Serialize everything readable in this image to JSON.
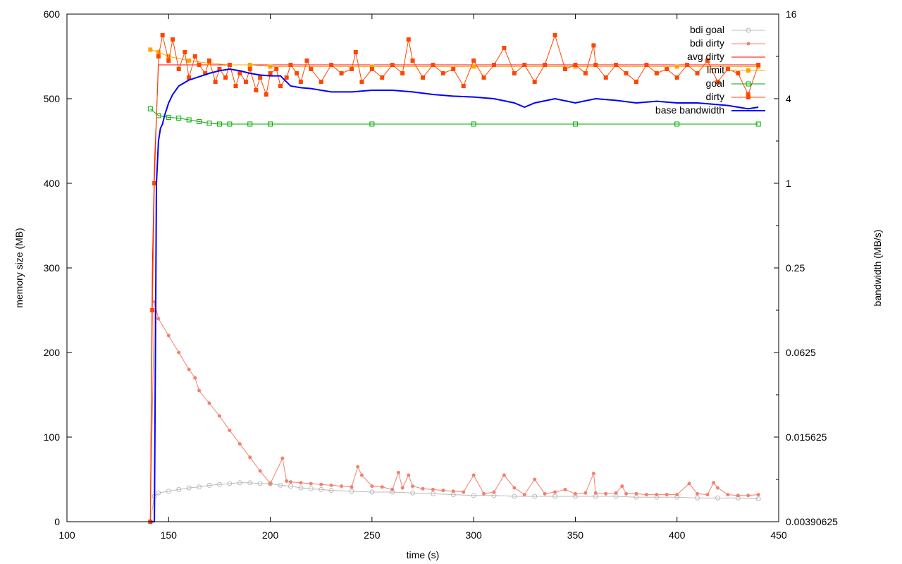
{
  "chart_data": {
    "type": "line",
    "title": "",
    "xlabel": "time (s)",
    "ylabel": "memory size (MB)",
    "y2label": "bandwidth (MB/s)",
    "xlim": [
      100,
      450
    ],
    "ylim": [
      0,
      600
    ],
    "y2scale": "log2",
    "y2lim": [
      0.00390625,
      16
    ],
    "x_ticks": [
      "100",
      "150",
      "200",
      "250",
      "300",
      "350",
      "400",
      "450"
    ],
    "y_ticks": [
      "0",
      "100",
      "200",
      "300",
      "400",
      "500",
      "600"
    ],
    "y2_ticks": [
      "0.00390625",
      "0.015625",
      "0.0625",
      "0.25",
      "1",
      "4",
      "16"
    ],
    "grid": false,
    "legend_position": "top-right",
    "series": [
      {
        "name": "bdi goal",
        "color": "#bbbbbb",
        "marker": "open-circle",
        "axis": "left",
        "x": [
          141,
          143,
          145,
          150,
          155,
          160,
          165,
          170,
          175,
          180,
          185,
          190,
          195,
          200,
          205,
          210,
          215,
          220,
          225,
          230,
          240,
          250,
          260,
          270,
          280,
          290,
          300,
          310,
          320,
          330,
          340,
          350,
          360,
          370,
          380,
          390,
          400,
          410,
          420,
          430,
          440
        ],
        "y": [
          0,
          30,
          34,
          36,
          38,
          40,
          41,
          43,
          44,
          45,
          46,
          46,
          45,
          45,
          43,
          42,
          40,
          39,
          38,
          37,
          36,
          35,
          35,
          34,
          33,
          32,
          31,
          31,
          30,
          30,
          30,
          30,
          30,
          30,
          29,
          29,
          29,
          28,
          28,
          28,
          27
        ]
      },
      {
        "name": "bdi dirty",
        "color": "#f4806c",
        "marker": "filled-circle",
        "axis": "left",
        "x": [
          141,
          143,
          145,
          150,
          155,
          160,
          163,
          165,
          170,
          175,
          180,
          185,
          190,
          195,
          200,
          206,
          208,
          210,
          215,
          220,
          225,
          230,
          235,
          240,
          243,
          245,
          250,
          255,
          260,
          263,
          265,
          268,
          270,
          275,
          280,
          285,
          290,
          295,
          300,
          305,
          310,
          315,
          320,
          325,
          330,
          335,
          340,
          345,
          350,
          355,
          359,
          360,
          365,
          370,
          373,
          375,
          380,
          385,
          390,
          395,
          400,
          406,
          410,
          415,
          418,
          420,
          425,
          430,
          435,
          440
        ],
        "y": [
          0,
          260,
          240,
          220,
          200,
          180,
          170,
          155,
          140,
          125,
          108,
          92,
          76,
          60,
          45,
          75,
          48,
          47,
          46,
          45,
          44,
          43,
          42,
          41,
          65,
          55,
          42,
          41,
          38,
          58,
          40,
          55,
          42,
          39,
          38,
          37,
          36,
          35,
          55,
          33,
          35,
          55,
          40,
          32,
          50,
          33,
          35,
          38,
          33,
          34,
          57,
          34,
          33,
          34,
          42,
          33,
          33,
          32,
          32,
          32,
          32,
          45,
          33,
          32,
          46,
          40,
          32,
          31,
          31,
          32
        ]
      },
      {
        "name": "avg dirty",
        "color": "#ff0000",
        "marker": "none",
        "axis": "left",
        "x": [
          141,
          142,
          143,
          145,
          440
        ],
        "y": [
          0,
          300,
          420,
          540,
          540
        ]
      },
      {
        "name": "limit",
        "color": "#ffa500",
        "marker": "filled-square",
        "axis": "left",
        "x": [
          141,
          145,
          150,
          160,
          170,
          180,
          190,
          200,
          250,
          300,
          350,
          400,
          440
        ],
        "y": [
          558,
          555,
          550,
          545,
          542,
          540,
          540,
          538,
          538,
          538,
          538,
          538,
          538
        ]
      },
      {
        "name": "goal",
        "color": "#00aa00",
        "marker": "open-square",
        "axis": "left",
        "x": [
          141,
          145,
          150,
          155,
          160,
          165,
          170,
          175,
          180,
          190,
          200,
          250,
          300,
          350,
          400,
          440
        ],
        "y": [
          488,
          480,
          478,
          477,
          475,
          473,
          471,
          470,
          470,
          470,
          470,
          470,
          470,
          470,
          470,
          470
        ]
      },
      {
        "name": "dirty",
        "color": "#ff4500",
        "marker": "filled-square",
        "axis": "left",
        "x": [
          141,
          142,
          143,
          145,
          147,
          150,
          152,
          155,
          158,
          160,
          163,
          165,
          168,
          170,
          173,
          175,
          178,
          180,
          183,
          185,
          188,
          190,
          193,
          195,
          198,
          200,
          203,
          205,
          208,
          210,
          213,
          215,
          218,
          220,
          225,
          230,
          235,
          240,
          242,
          245,
          250,
          255,
          260,
          265,
          268,
          270,
          275,
          280,
          285,
          290,
          295,
          300,
          305,
          310,
          315,
          320,
          325,
          330,
          335,
          340,
          345,
          350,
          355,
          359,
          360,
          365,
          370,
          375,
          380,
          385,
          390,
          395,
          400,
          405,
          410,
          415,
          420,
          425,
          430,
          435,
          440
        ],
        "y": [
          0,
          250,
          400,
          550,
          575,
          545,
          570,
          535,
          555,
          525,
          550,
          540,
          530,
          545,
          520,
          535,
          525,
          540,
          515,
          530,
          520,
          535,
          510,
          525,
          505,
          530,
          535,
          515,
          525,
          540,
          530,
          520,
          545,
          535,
          520,
          540,
          530,
          535,
          555,
          520,
          535,
          525,
          540,
          530,
          570,
          545,
          525,
          540,
          530,
          535,
          515,
          545,
          525,
          540,
          560,
          530,
          540,
          520,
          540,
          575,
          535,
          540,
          530,
          563,
          540,
          525,
          540,
          530,
          520,
          540,
          530,
          535,
          525,
          540,
          530,
          545,
          520,
          535,
          530,
          505,
          540
        ]
      },
      {
        "name": "base bandwidth",
        "color": "#0000ff",
        "marker": "none",
        "axis": "left",
        "x": [
          141,
          143,
          144,
          145,
          146,
          147,
          148,
          150,
          152,
          155,
          160,
          165,
          170,
          175,
          180,
          185,
          190,
          195,
          200,
          205,
          210,
          215,
          220,
          225,
          230,
          240,
          250,
          260,
          270,
          280,
          290,
          300,
          310,
          320,
          325,
          330,
          340,
          350,
          360,
          370,
          380,
          390,
          400,
          410,
          420,
          425,
          430,
          435,
          440
        ],
        "y": [
          0,
          0,
          400,
          450,
          465,
          470,
          480,
          495,
          505,
          515,
          522,
          526,
          530,
          533,
          535,
          533,
          530,
          528,
          527,
          527,
          515,
          513,
          512,
          510,
          508,
          508,
          510,
          510,
          508,
          505,
          503,
          502,
          500,
          495,
          490,
          495,
          500,
          495,
          500,
          498,
          495,
          497,
          495,
          495,
          493,
          492,
          490,
          488,
          490
        ]
      }
    ]
  }
}
